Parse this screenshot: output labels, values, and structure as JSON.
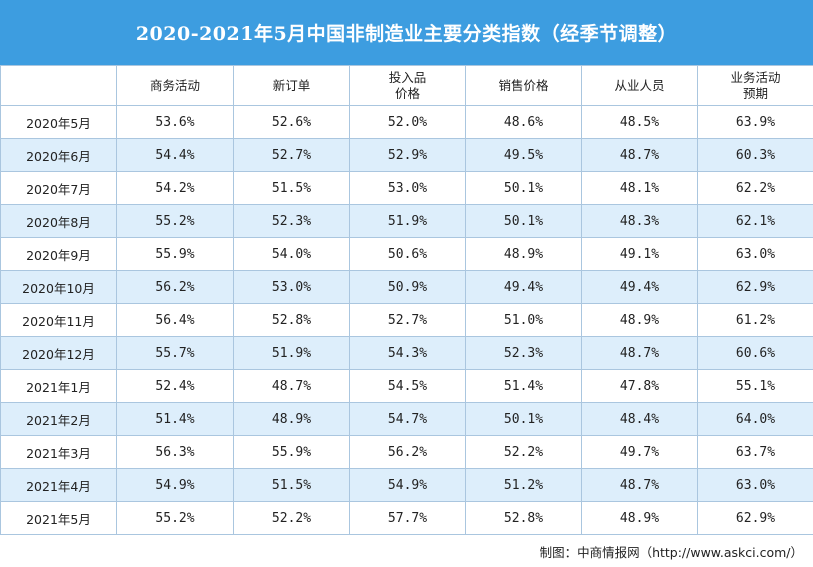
{
  "title": "2020-2021年5月中国非制造业主要分类指数（经季节调整）",
  "columns": [
    {
      "lines": [
        ""
      ]
    },
    {
      "lines": [
        "商务活动"
      ]
    },
    {
      "lines": [
        "新订单"
      ]
    },
    {
      "lines": [
        "投入品",
        "价格"
      ]
    },
    {
      "lines": [
        "销售价格"
      ]
    },
    {
      "lines": [
        "从业人员"
      ]
    },
    {
      "lines": [
        "业务活动",
        "预期"
      ]
    }
  ],
  "rows": [
    [
      "2020年5月",
      "53.6%",
      "52.6%",
      "52.0%",
      "48.6%",
      "48.5%",
      "63.9%"
    ],
    [
      "2020年6月",
      "54.4%",
      "52.7%",
      "52.9%",
      "49.5%",
      "48.7%",
      "60.3%"
    ],
    [
      "2020年7月",
      "54.2%",
      "51.5%",
      "53.0%",
      "50.1%",
      "48.1%",
      "62.2%"
    ],
    [
      "2020年8月",
      "55.2%",
      "52.3%",
      "51.9%",
      "50.1%",
      "48.3%",
      "62.1%"
    ],
    [
      "2020年9月",
      "55.9%",
      "54.0%",
      "50.6%",
      "48.9%",
      "49.1%",
      "63.0%"
    ],
    [
      "2020年10月",
      "56.2%",
      "53.0%",
      "50.9%",
      "49.4%",
      "49.4%",
      "62.9%"
    ],
    [
      "2020年11月",
      "56.4%",
      "52.8%",
      "52.7%",
      "51.0%",
      "48.9%",
      "61.2%"
    ],
    [
      "2020年12月",
      "55.7%",
      "51.9%",
      "54.3%",
      "52.3%",
      "48.7%",
      "60.6%"
    ],
    [
      "2021年1月",
      "52.4%",
      "48.7%",
      "54.5%",
      "51.4%",
      "47.8%",
      "55.1%"
    ],
    [
      "2021年2月",
      "51.4%",
      "48.9%",
      "54.7%",
      "50.1%",
      "48.4%",
      "64.0%"
    ],
    [
      "2021年3月",
      "56.3%",
      "55.9%",
      "56.2%",
      "52.2%",
      "49.7%",
      "63.7%"
    ],
    [
      "2021年4月",
      "54.9%",
      "51.5%",
      "54.9%",
      "51.2%",
      "48.7%",
      "63.0%"
    ],
    [
      "2021年5月",
      "55.2%",
      "52.2%",
      "57.7%",
      "52.8%",
      "48.9%",
      "62.9%"
    ]
  ],
  "source": "制图：中商情报网（http://www.askci.com/）",
  "colors": {
    "header_bg": "#3d9de0",
    "stripe": "#ddeefb",
    "border": "#aac6df"
  }
}
